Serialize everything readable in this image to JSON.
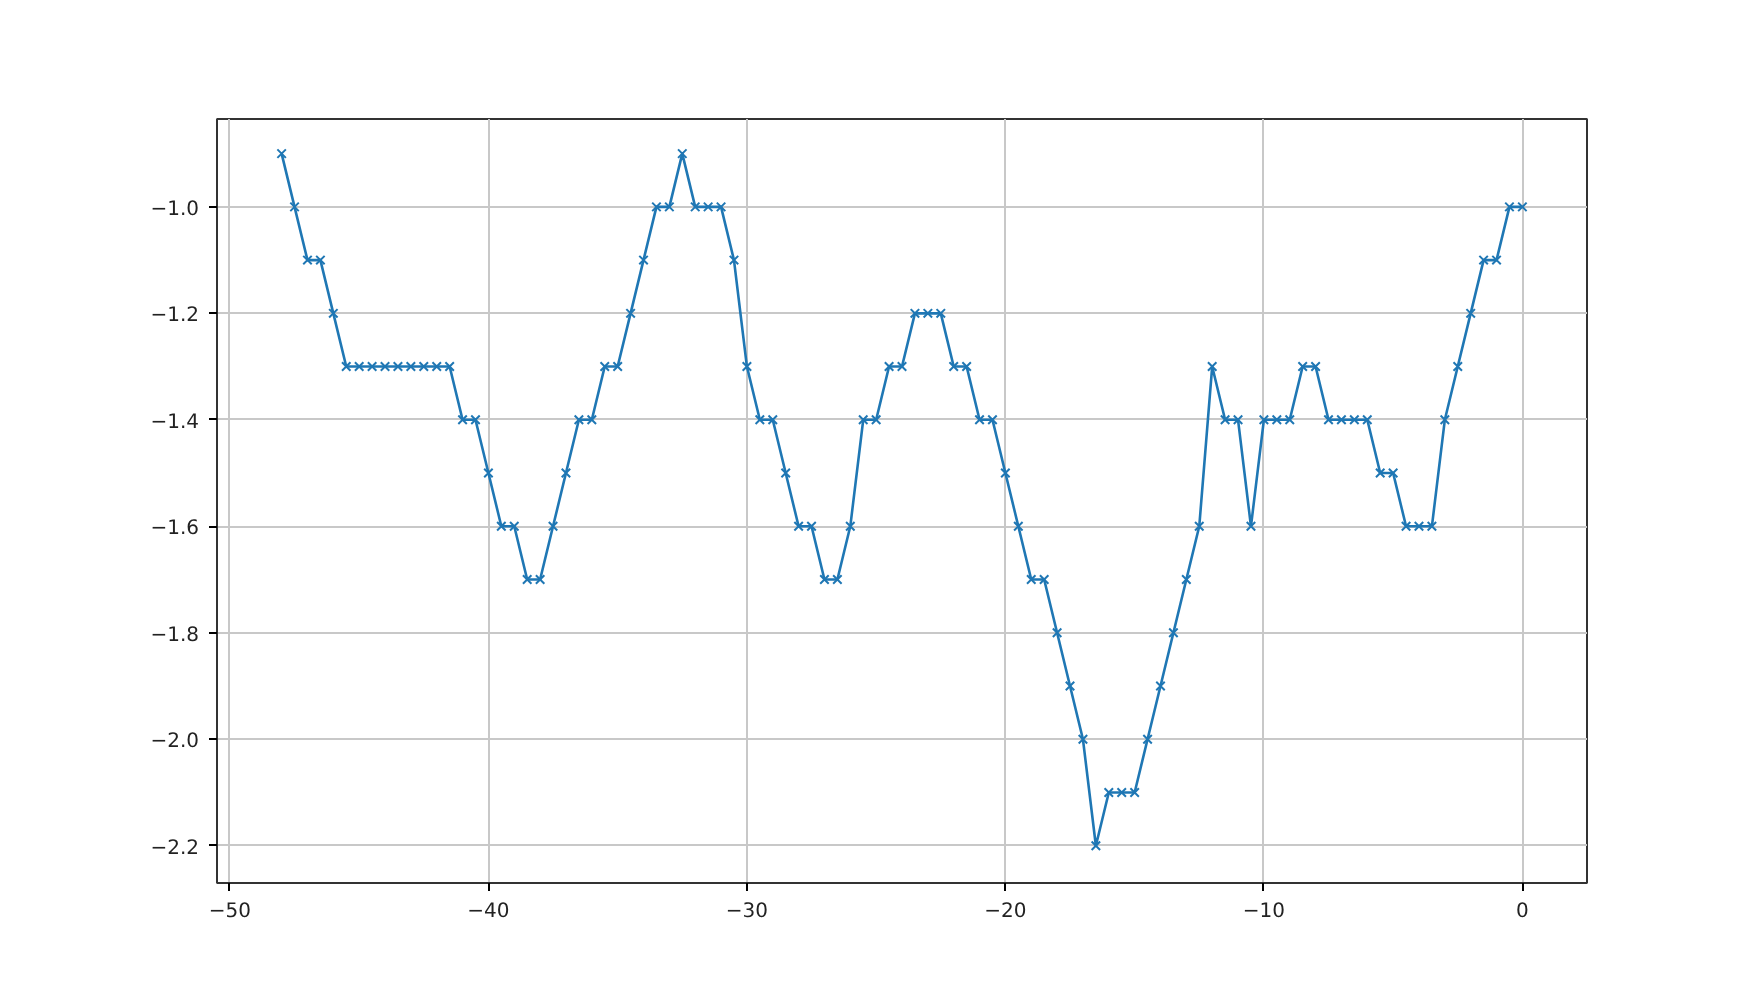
{
  "chart_data": {
    "type": "line",
    "marker": "cross",
    "line_style": "solid",
    "grid": true,
    "xlim": [
      -50.5,
      2.5
    ],
    "xticks": [
      {
        "value": -50,
        "label": "−50"
      },
      {
        "value": -40,
        "label": "−40"
      },
      {
        "value": -30,
        "label": "−30"
      },
      {
        "value": -20,
        "label": "−20"
      },
      {
        "value": -10,
        "label": "−10"
      },
      0
    ],
    "ylim": [
      -2.27,
      -0.835
    ],
    "yticks": [
      {
        "value": -2.2,
        "label": "−2.2"
      },
      {
        "value": -2.0,
        "label": "−2.0"
      },
      {
        "value": -1.8,
        "label": "−1.8"
      },
      {
        "value": -1.6,
        "label": "−1.6"
      },
      {
        "value": -1.4,
        "label": "−1.4"
      },
      {
        "value": -1.2,
        "label": "−1.2"
      },
      {
        "value": -1.0,
        "label": "−1.0"
      }
    ],
    "x": [
      -48,
      -47.5,
      -47,
      -46.5,
      -46,
      -45.5,
      -45,
      -44.5,
      -44,
      -43.5,
      -43,
      -42.5,
      -42,
      -41.5,
      -41,
      -40.5,
      -40,
      -39.5,
      -39,
      -38.5,
      -38,
      -37.5,
      -37,
      -36.5,
      -36,
      -35.5,
      -35,
      -34.5,
      -34,
      -33.5,
      -33,
      -32.5,
      -32,
      -31.5,
      -31,
      -30.5,
      -30,
      -29.5,
      -29,
      -28.5,
      -28,
      -27.5,
      -27,
      -26.5,
      -26,
      -25.5,
      -25,
      -24.5,
      -24,
      -23.5,
      -23,
      -22.5,
      -22,
      -21.5,
      -21,
      -20.5,
      -20,
      -19.5,
      -19,
      -18.5,
      -18,
      -17.5,
      -17,
      -16.5,
      -16,
      -15.5,
      -15,
      -14.5,
      -14,
      -13.5,
      -13,
      -12.5,
      -12,
      -11.5,
      -11,
      -10.5,
      -10,
      -9.5,
      -9,
      -8.5,
      -8,
      -7.5,
      -7,
      -6.5,
      -6,
      -5.5,
      -5,
      -4.5,
      -4,
      -3.5,
      -3,
      -2.5,
      -2,
      -1.5,
      -1,
      -0.5,
      0
    ],
    "series": [
      {
        "color": "#1f77b4",
        "values": [
          -0.9,
          -1.0,
          -1.1,
          -1.1,
          -1.2,
          -1.3,
          -1.3,
          -1.3,
          -1.3,
          -1.3,
          -1.3,
          -1.3,
          -1.3,
          -1.3,
          -1.4,
          -1.4,
          -1.5,
          -1.6,
          -1.6,
          -1.7,
          -1.7,
          -1.6,
          -1.5,
          -1.4,
          -1.4,
          -1.3,
          -1.3,
          -1.2,
          -1.1,
          -1.0,
          -1.0,
          -0.9,
          -1.0,
          -1.0,
          -1.0,
          -1.1,
          -1.3,
          -1.4,
          -1.4,
          -1.5,
          -1.6,
          -1.6,
          -1.7,
          -1.7,
          -1.6,
          -1.4,
          -1.4,
          -1.3,
          -1.3,
          -1.2,
          -1.2,
          -1.2,
          -1.3,
          -1.3,
          -1.4,
          -1.4,
          -1.5,
          -1.6,
          -1.7,
          -1.7,
          -1.8,
          -1.9,
          -2.0,
          -2.2,
          -2.1,
          -2.1,
          -2.1,
          -2.0,
          -1.9,
          -1.8,
          -1.7,
          -1.6,
          -1.3,
          -1.4,
          -1.4,
          -1.6,
          -1.4,
          -1.4,
          -1.4,
          -1.3,
          -1.3,
          -1.4,
          -1.4,
          -1.4,
          -1.4,
          -1.5,
          -1.5,
          -1.6,
          -1.6,
          -1.6,
          -1.4,
          -1.3,
          -1.2,
          -1.1,
          -1.1,
          -1.0,
          -1.0
        ]
      }
    ]
  }
}
